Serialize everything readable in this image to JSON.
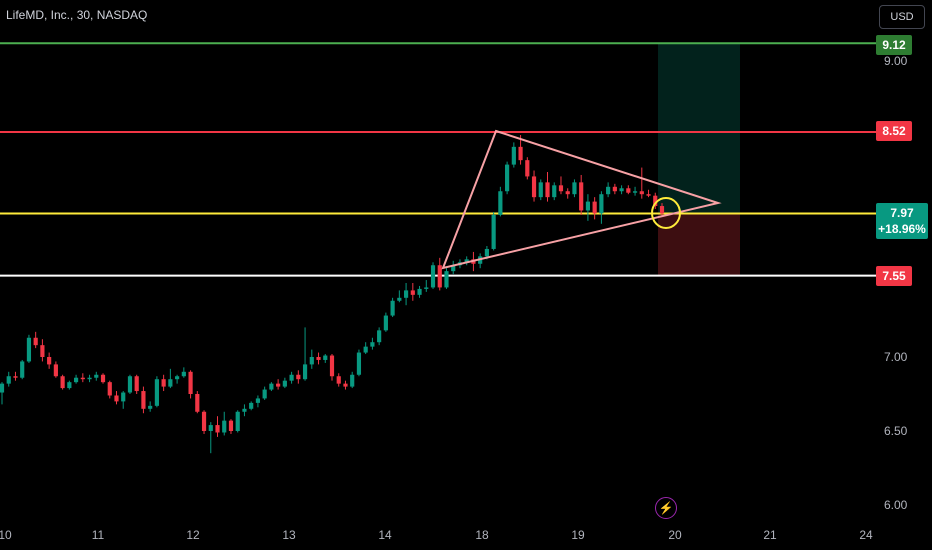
{
  "header": {
    "title": "LifeMD, Inc., 30, NASDAQ",
    "currency": "USD"
  },
  "colors": {
    "background": "#000000",
    "up": "#089981",
    "down": "#f23645",
    "target_line": "#4caf50",
    "resistance_line": "#f23645",
    "current_line": "#ffeb3b",
    "support_line": "#ffffff",
    "triangle": "#f7a1a5",
    "marker": "#ffeb3b"
  },
  "price_axis": {
    "ticks": [
      "9.00",
      "7.00",
      "6.50",
      "6.00"
    ]
  },
  "time_axis": {
    "ticks": [
      "10",
      "11",
      "12",
      "13",
      "14",
      "18",
      "19",
      "20",
      "21",
      "24"
    ]
  },
  "levels": {
    "target": "9.12",
    "resistance": "8.52",
    "current": "7.97",
    "current_change": "+18.96%",
    "support": "7.55"
  },
  "bottom_icon": "lightning-icon",
  "chart_data": {
    "type": "candlestick",
    "title": "LifeMD, Inc., 30, NASDAQ",
    "ylim": [
      5.95,
      9.35
    ],
    "yticks": [
      6.0,
      6.5,
      7.0,
      9.0
    ],
    "horizontal_levels": [
      9.12,
      8.52,
      7.97,
      7.55
    ],
    "candles": [
      [
        6.76,
        6.83,
        6.68,
        6.82
      ],
      [
        6.82,
        6.9,
        6.8,
        6.87
      ],
      [
        6.87,
        6.9,
        6.84,
        6.86
      ],
      [
        6.86,
        6.98,
        6.85,
        6.97
      ],
      [
        6.97,
        7.15,
        6.96,
        7.13
      ],
      [
        7.13,
        7.17,
        7.06,
        7.08
      ],
      [
        7.08,
        7.12,
        6.97,
        7.0
      ],
      [
        7.0,
        7.03,
        6.92,
        6.95
      ],
      [
        6.95,
        6.97,
        6.86,
        6.87
      ],
      [
        6.87,
        6.88,
        6.78,
        6.79
      ],
      [
        6.79,
        6.84,
        6.78,
        6.83
      ],
      [
        6.83,
        6.88,
        6.82,
        6.86
      ],
      [
        6.86,
        6.89,
        6.83,
        6.85
      ],
      [
        6.85,
        6.88,
        6.83,
        6.86
      ],
      [
        6.86,
        6.9,
        6.84,
        6.88
      ],
      [
        6.88,
        6.89,
        6.82,
        6.83
      ],
      [
        6.83,
        6.84,
        6.72,
        6.74
      ],
      [
        6.74,
        6.77,
        6.68,
        6.7
      ],
      [
        6.7,
        6.77,
        6.65,
        6.76
      ],
      [
        6.76,
        6.88,
        6.75,
        6.87
      ],
      [
        6.87,
        6.88,
        6.75,
        6.77
      ],
      [
        6.77,
        6.8,
        6.62,
        6.65
      ],
      [
        6.65,
        6.7,
        6.63,
        6.67
      ],
      [
        6.67,
        6.87,
        6.66,
        6.85
      ],
      [
        6.85,
        6.88,
        6.77,
        6.8
      ],
      [
        6.8,
        6.92,
        6.79,
        6.85
      ],
      [
        6.85,
        6.88,
        6.82,
        6.87
      ],
      [
        6.87,
        6.93,
        6.86,
        6.9
      ],
      [
        6.9,
        6.91,
        6.72,
        6.75
      ],
      [
        6.75,
        6.77,
        6.62,
        6.63
      ],
      [
        6.63,
        6.64,
        6.48,
        6.5
      ],
      [
        6.5,
        6.56,
        6.35,
        6.54
      ],
      [
        6.54,
        6.6,
        6.46,
        6.49
      ],
      [
        6.49,
        6.63,
        6.47,
        6.57
      ],
      [
        6.57,
        6.58,
        6.48,
        6.5
      ],
      [
        6.5,
        6.64,
        6.49,
        6.63
      ],
      [
        6.63,
        6.68,
        6.6,
        6.65
      ],
      [
        6.65,
        6.7,
        6.64,
        6.69
      ],
      [
        6.69,
        6.74,
        6.66,
        6.72
      ],
      [
        6.72,
        6.8,
        6.71,
        6.78
      ],
      [
        6.78,
        6.83,
        6.77,
        6.82
      ],
      [
        6.82,
        6.85,
        6.78,
        6.8
      ],
      [
        6.8,
        6.86,
        6.79,
        6.84
      ],
      [
        6.84,
        6.9,
        6.82,
        6.88
      ],
      [
        6.88,
        6.91,
        6.82,
        6.85
      ],
      [
        6.85,
        7.2,
        6.84,
        6.95
      ],
      [
        6.95,
        7.05,
        6.92,
        7.0
      ],
      [
        7.0,
        7.03,
        6.95,
        6.98
      ],
      [
        6.98,
        7.02,
        6.96,
        7.01
      ],
      [
        7.01,
        7.02,
        6.84,
        6.87
      ],
      [
        6.87,
        6.89,
        6.8,
        6.82
      ],
      [
        6.82,
        6.84,
        6.78,
        6.8
      ],
      [
        6.8,
        6.9,
        6.79,
        6.88
      ],
      [
        6.88,
        7.05,
        6.87,
        7.03
      ],
      [
        7.03,
        7.1,
        7.02,
        7.07
      ],
      [
        7.07,
        7.13,
        7.05,
        7.1
      ],
      [
        7.1,
        7.2,
        7.08,
        7.18
      ],
      [
        7.18,
        7.3,
        7.17,
        7.28
      ],
      [
        7.28,
        7.4,
        7.27,
        7.38
      ],
      [
        7.38,
        7.45,
        7.37,
        7.4
      ],
      [
        7.4,
        7.5,
        7.35,
        7.45
      ],
      [
        7.45,
        7.5,
        7.38,
        7.42
      ],
      [
        7.42,
        7.48,
        7.4,
        7.46
      ],
      [
        7.46,
        7.52,
        7.44,
        7.47
      ],
      [
        7.47,
        7.64,
        7.46,
        7.62
      ],
      [
        7.62,
        7.67,
        7.45,
        7.47
      ],
      [
        7.47,
        7.6,
        7.46,
        7.58
      ],
      [
        7.58,
        7.65,
        7.56,
        7.62
      ],
      [
        7.62,
        7.66,
        7.6,
        7.64
      ],
      [
        7.64,
        7.68,
        7.62,
        7.66
      ],
      [
        7.66,
        7.71,
        7.58,
        7.63
      ],
      [
        7.63,
        7.7,
        7.6,
        7.68
      ],
      [
        7.68,
        7.75,
        7.66,
        7.73
      ],
      [
        7.73,
        7.98,
        7.72,
        7.96
      ],
      [
        7.96,
        8.15,
        7.95,
        8.12
      ],
      [
        8.12,
        8.32,
        8.1,
        8.3
      ],
      [
        8.3,
        8.45,
        8.28,
        8.42
      ],
      [
        8.42,
        8.5,
        8.3,
        8.33
      ],
      [
        8.33,
        8.35,
        8.2,
        8.22
      ],
      [
        8.22,
        8.26,
        8.05,
        8.08
      ],
      [
        8.08,
        8.2,
        8.06,
        8.18
      ],
      [
        8.18,
        8.25,
        8.05,
        8.08
      ],
      [
        8.08,
        8.18,
        8.06,
        8.16
      ],
      [
        8.16,
        8.22,
        8.1,
        8.12
      ],
      [
        8.12,
        8.14,
        8.07,
        8.1
      ],
      [
        8.1,
        8.2,
        8.08,
        8.18
      ],
      [
        8.18,
        8.23,
        7.96,
        7.99
      ],
      [
        7.99,
        8.1,
        7.92,
        8.05
      ],
      [
        8.05,
        8.08,
        7.93,
        7.97
      ],
      [
        7.97,
        8.12,
        7.9,
        8.1
      ],
      [
        8.1,
        8.18,
        8.08,
        8.15
      ],
      [
        8.15,
        8.17,
        8.1,
        8.12
      ],
      [
        8.12,
        8.16,
        8.1,
        8.14
      ],
      [
        8.14,
        8.16,
        8.1,
        8.11
      ],
      [
        8.11,
        8.15,
        8.09,
        8.12
      ],
      [
        8.12,
        8.28,
        8.07,
        8.1
      ],
      [
        8.1,
        8.13,
        8.08,
        8.09
      ],
      [
        8.09,
        8.11,
        8.0,
        8.02
      ],
      [
        8.02,
        8.04,
        7.95,
        7.97
      ]
    ],
    "triangle": {
      "points": [
        [
          496,
          131
        ],
        [
          718,
          203
        ],
        [
          443,
          268
        ]
      ]
    },
    "long_position": {
      "entry": 7.97,
      "target": 9.12,
      "stop": 7.55
    }
  }
}
